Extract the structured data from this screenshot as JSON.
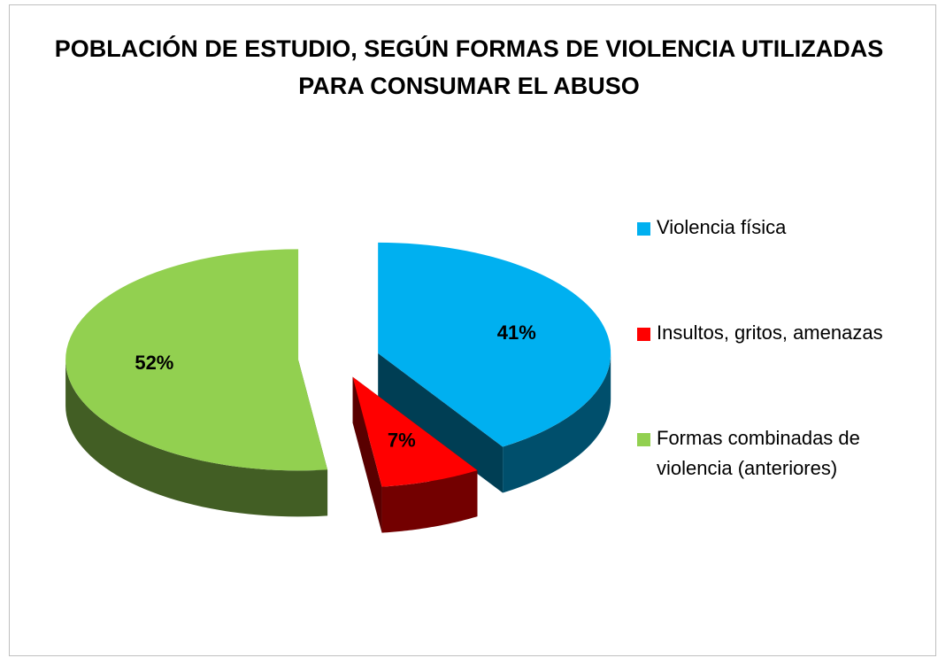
{
  "chart_data": {
    "type": "pie3d",
    "title": "POBLACIÓN DE ESTUDIO, SEGÚN FORMAS DE VIOLENCIA UTILIZADAS PARA CONSUMAR EL ABUSO",
    "categories": [
      "Violencia física",
      "Insultos, gritos, amenazas",
      "Formas combinadas de violencia (anteriores)"
    ],
    "values": [
      41,
      7,
      52
    ],
    "value_labels": [
      "41%",
      "7%",
      "52%"
    ],
    "colors": [
      "#00b0f0",
      "#ff0000",
      "#92d050"
    ],
    "legend": "right"
  }
}
